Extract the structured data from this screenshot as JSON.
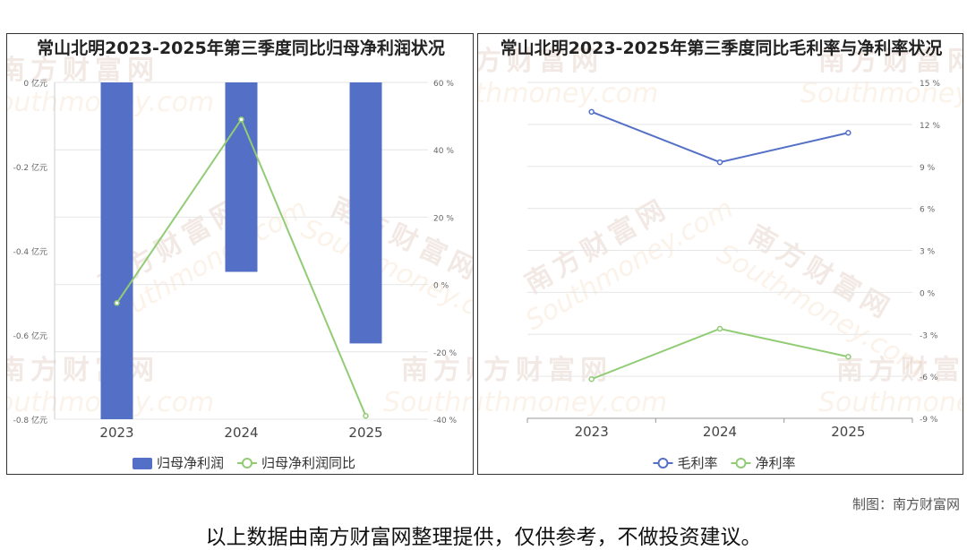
{
  "watermark": {
    "cn": "南方财富网",
    "en": "Southmoney.com"
  },
  "chart_data": [
    {
      "type": "bar+line",
      "title": "常山北明2023-2025年第三季度同比归母净利润状况",
      "categories": [
        "2023",
        "2024",
        "2025"
      ],
      "left_axis": {
        "ylim": [
          -0.8,
          0
        ],
        "ticks": [
          0,
          -0.2,
          -0.4,
          -0.6,
          -0.8
        ],
        "tick_labels": [
          "0 亿元",
          "-0.2 亿元",
          "-0.4 亿元",
          "-0.6 亿元",
          "-0.8 亿元"
        ]
      },
      "right_axis": {
        "ylim": [
          -40,
          60
        ],
        "ticks": [
          60,
          40,
          20,
          0,
          -20,
          -40
        ],
        "tick_labels": [
          "60 %",
          "40 %",
          "20 %",
          "0 %",
          "-20 %",
          "-40 %"
        ]
      },
      "series": [
        {
          "name": "归母净利润",
          "type": "bar",
          "axis": "left",
          "color": "#5470c6",
          "values": [
            -0.8,
            -0.45,
            -0.62
          ]
        },
        {
          "name": "归母净利润同比",
          "type": "line",
          "axis": "right",
          "color": "#91cc75",
          "values": [
            -5.5,
            49,
            -39
          ]
        }
      ],
      "legend": "bottom-center",
      "grid": true
    },
    {
      "type": "line",
      "title": "常山北明2023-2025年第三季度同比毛利率与净利率状况",
      "categories": [
        "2023",
        "2024",
        "2025"
      ],
      "right_axis": {
        "ylim": [
          -9,
          15
        ],
        "ticks": [
          15,
          12,
          9,
          6,
          3,
          0,
          -3,
          -6,
          -9
        ],
        "tick_labels": [
          "15 %",
          "12 %",
          "9 %",
          "6 %",
          "3 %",
          "0 %",
          "-3 %",
          "-6 %",
          "-9 %"
        ]
      },
      "series": [
        {
          "name": "毛利率",
          "color": "#5470c6",
          "values": [
            12.9,
            9.3,
            11.4
          ]
        },
        {
          "name": "净利率",
          "color": "#91cc75",
          "values": [
            -6.2,
            -2.6,
            -4.6
          ]
        }
      ],
      "legend": "bottom-center",
      "grid": true
    }
  ],
  "footer": {
    "credit": "制图：南方财富网",
    "disclaimer": "以上数据由南方财富网整理提供，仅供参考，不做投资建议。"
  }
}
